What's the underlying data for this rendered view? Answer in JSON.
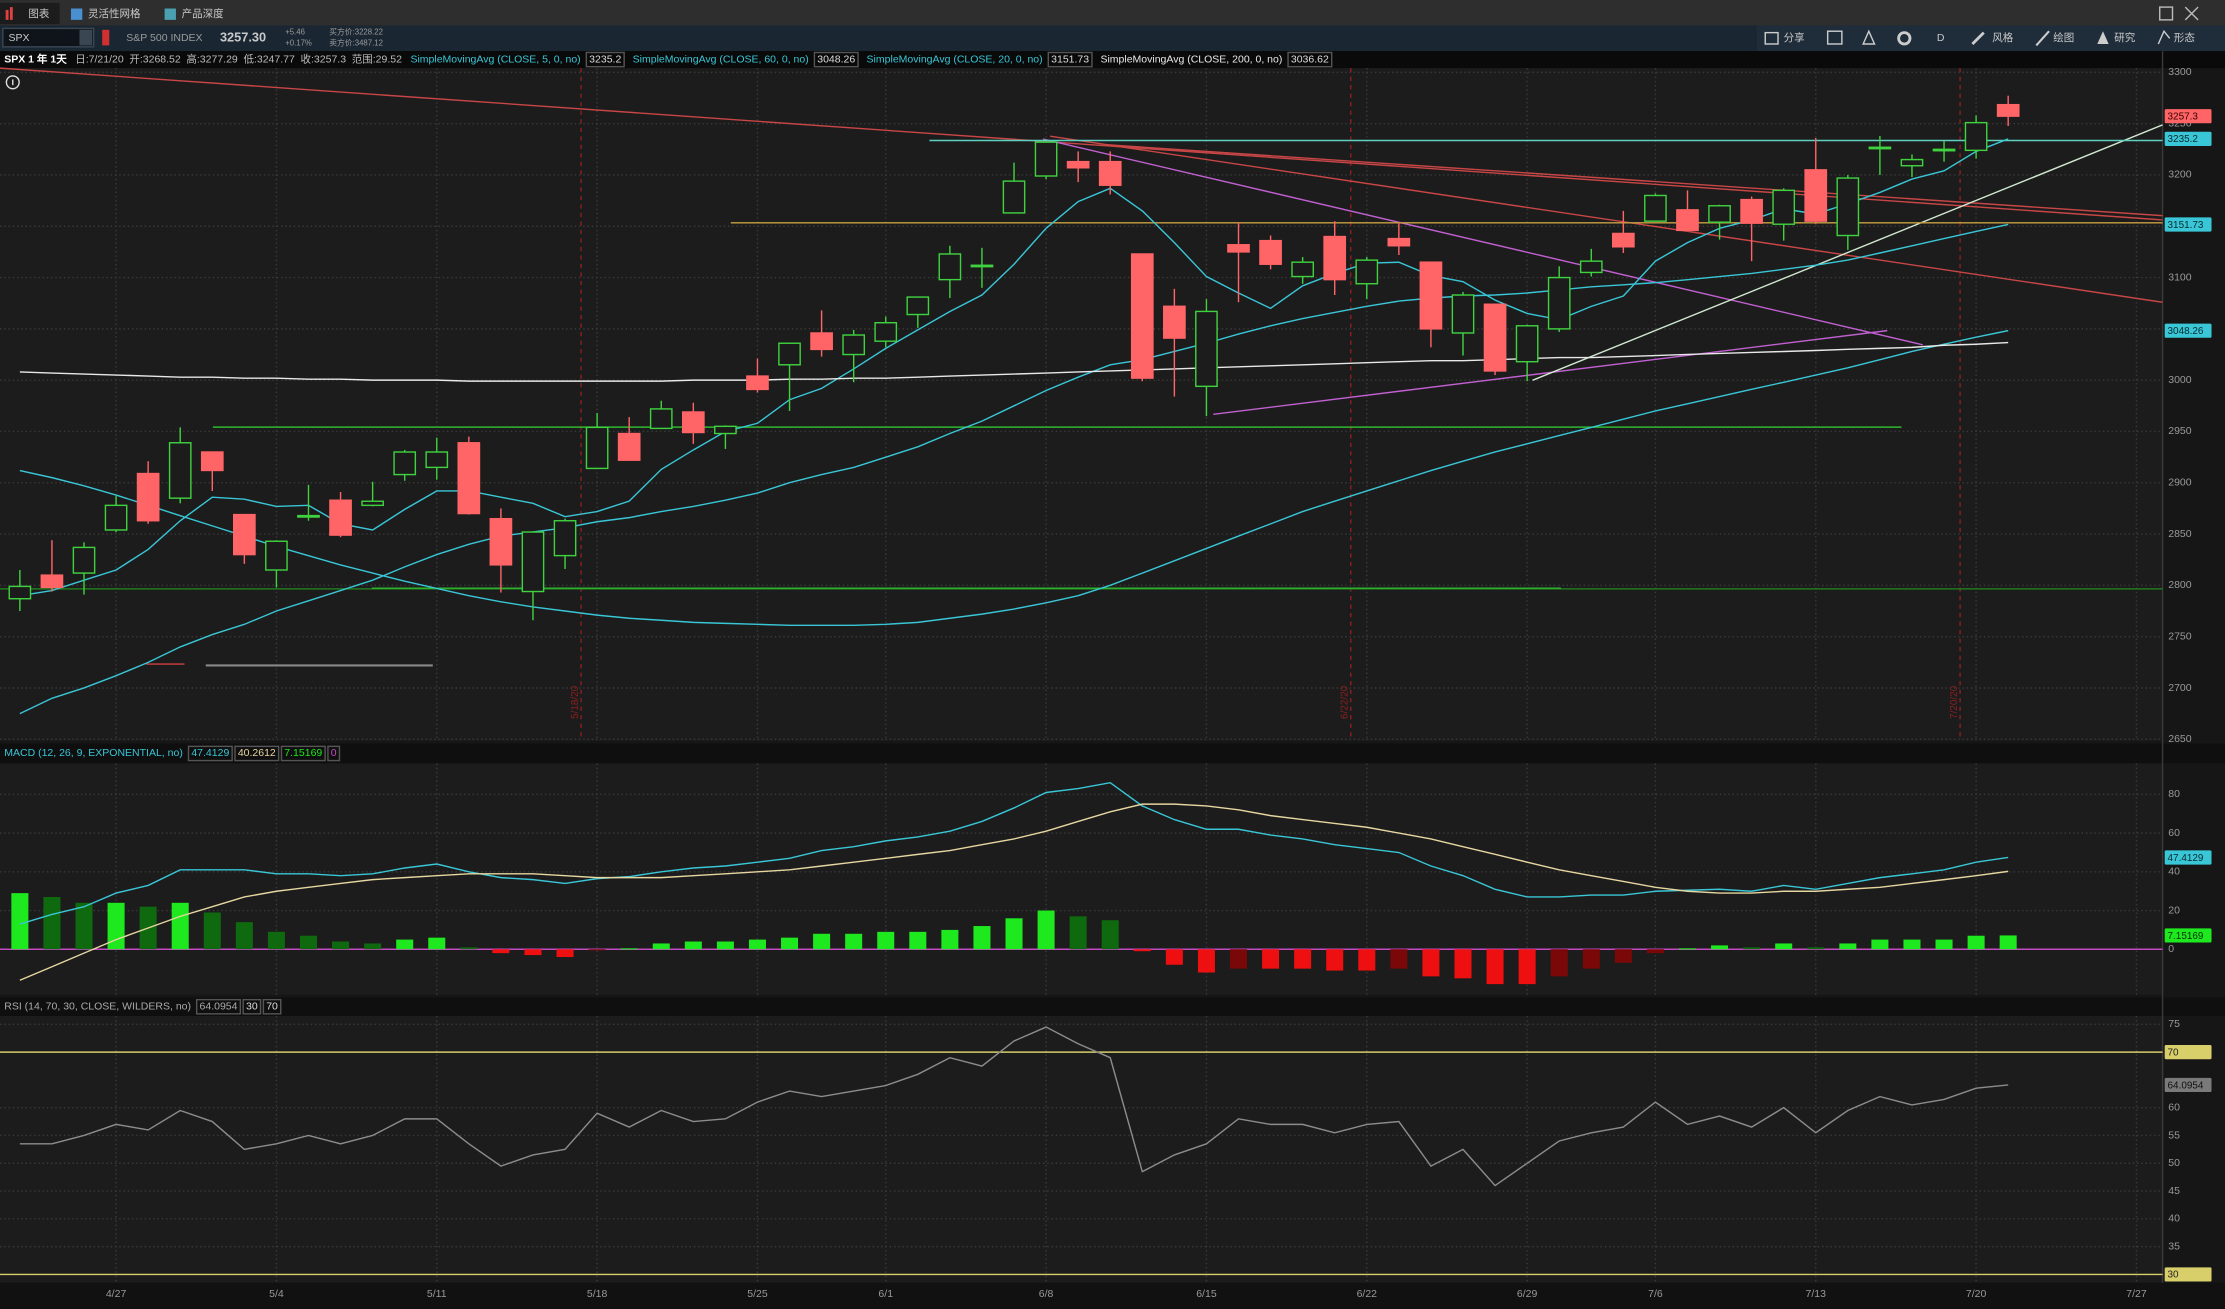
{
  "tabs": [
    "图表",
    "灵活性网格",
    "产品深度"
  ],
  "toolbar": {
    "symbol": "SPX",
    "description": "S&P 500 INDEX",
    "last": "3257.30",
    "change": "+5.46",
    "change_pct": "+0.17%",
    "bid": "买方价:3228.22",
    "ask": "卖方价:3487.12",
    "buttons": [
      "分享",
      "D",
      "风格",
      "绘图",
      "研究",
      "形态"
    ]
  },
  "chart_data": [
    {
      "type": "candlestick",
      "title": "SPX 1 年 1天",
      "info": [
        "日:7/21/20",
        "开:3268.52",
        "高:3277.29",
        "低:3247.77",
        "收:3257.3",
        "范围:29.52"
      ],
      "categories": [
        null,
        null,
        null,
        "4/27",
        null,
        null,
        null,
        null,
        "5/4",
        null,
        null,
        null,
        null,
        "5/11",
        null,
        null,
        null,
        null,
        "5/18",
        null,
        null,
        null,
        null,
        "5/25",
        null,
        null,
        null,
        "6/1",
        null,
        null,
        null,
        null,
        "6/8",
        null,
        null,
        null,
        null,
        "6/15",
        null,
        null,
        null,
        null,
        "6/22",
        null,
        null,
        null,
        null,
        "6/29",
        null,
        null,
        null,
        "7/6",
        null,
        null,
        null,
        null,
        "7/13",
        null,
        null,
        null,
        null,
        "7/20",
        null,
        null,
        null,
        null,
        "7/27"
      ],
      "open": [
        2787,
        2810,
        2812,
        2854,
        2909,
        2885,
        2930,
        2869,
        2815,
        2868,
        2883,
        2878,
        2908,
        2915,
        2939,
        2865,
        2794,
        2829,
        2914,
        2948,
        2953,
        2969,
        2948,
        3004,
        3015,
        3046,
        3025,
        3038,
        3064,
        3098,
        3112,
        3163,
        3199,
        3213,
        3213,
        3123,
        3072,
        2994,
        3132,
        3136,
        3101,
        3140,
        3094,
        3138,
        3115,
        3046,
        3074,
        3018,
        3050,
        3105,
        3143,
        3155,
        3166,
        3154,
        3176,
        3152,
        3205,
        3141,
        3226,
        3209,
        3224,
        3224,
        3268.52,
        null,
        null,
        null,
        null
      ],
      "high": [
        2815,
        2844,
        2842,
        2887,
        2921,
        2954,
        2930,
        2869,
        2844,
        2898,
        2891,
        2901,
        2932,
        2944,
        2945,
        2875,
        2852,
        2865,
        2968,
        2964,
        2980,
        2978,
        2956,
        3021,
        3036,
        3068,
        3049,
        3062,
        3081,
        3131,
        3129,
        3212,
        3233,
        3223,
        3223,
        3123,
        3089,
        3079,
        3154,
        3141,
        3120,
        3155,
        3120,
        3154,
        3115,
        3086,
        3074,
        3054,
        3111,
        3128,
        3165,
        3182,
        3185,
        3171,
        3179,
        3187,
        3236,
        3200,
        3238,
        3220,
        3233,
        3258,
        3277.29,
        null,
        null,
        null,
        null
      ],
      "low": [
        2775,
        2794,
        2791,
        2852,
        2860,
        2880,
        2892,
        2821,
        2798,
        2863,
        2847,
        2877,
        2902,
        2903,
        2869,
        2793,
        2766,
        2816,
        2914,
        2922,
        2953,
        2938,
        2933,
        2988,
        2970,
        3023,
        2998,
        3032,
        3051,
        3080,
        3090,
        3163,
        3196,
        3193,
        3181,
        2999,
        2984,
        2965,
        3076,
        3108,
        3094,
        3083,
        3079,
        3122,
        3032,
        3024,
        3005,
        2999,
        3047,
        3101,
        3124,
        3155,
        3146,
        3137,
        3116,
        3136,
        3152,
        3127,
        3200,
        3198,
        3213,
        3216,
        3247.77,
        null,
        null,
        null,
        null
      ],
      "close": [
        2799,
        2798,
        2837,
        2878,
        2863,
        2939,
        2912,
        2830,
        2843,
        2868,
        2849,
        2882,
        2930,
        2930,
        2870,
        2820,
        2852,
        2863,
        2954,
        2922,
        2972,
        2949,
        2955,
        2991,
        3036,
        3030,
        3044,
        3056,
        3081,
        3123,
        3112,
        3194,
        3232,
        3207,
        3190,
        3002,
        3041,
        3067,
        3125,
        3113,
        3115,
        3098,
        3117,
        3131,
        3050,
        3083,
        3009,
        3053,
        3100,
        3116,
        3130,
        3180,
        3146,
        3170,
        3153,
        3185,
        3155,
        3197,
        3227,
        3215,
        3225,
        3251,
        3257.3,
        null,
        null,
        null,
        null
      ],
      "up_color": "#3fd23f",
      "down_color": "#ff6466",
      "last_label": "3257.3",
      "series": [
        {
          "name": "SimpleMovingAvg (CLOSE, 5, 0, no)",
          "color": "#39c6d6",
          "last_label": "3235.2",
          "values": [
            2790,
            2795,
            2805,
            2815,
            2835,
            2863,
            2886,
            2884,
            2877,
            2878,
            2860,
            2854,
            2874,
            2892,
            2892,
            2886,
            2880,
            2867,
            2872,
            2882,
            2913,
            2932,
            2950,
            2958,
            2981,
            2992,
            3011,
            3031,
            3049,
            3067,
            3083,
            3113,
            3148,
            3174,
            3187,
            3165,
            3134,
            3101,
            3085,
            3070,
            3092,
            3104,
            3114,
            3115,
            3102,
            3096,
            3078,
            3065,
            3059,
            3072,
            3082,
            3116,
            3134,
            3148,
            3156,
            3167,
            3162,
            3172,
            3183,
            3196,
            3204,
            3223,
            3235.2,
            null,
            null,
            null,
            null
          ]
        },
        {
          "name": "SimpleMovingAvg (CLOSE, 60, 0, no)",
          "color": "#39c6d6",
          "last_label": "3048.26",
          "values": [
            2912,
            2905,
            2897,
            2888,
            2878,
            2868,
            2858,
            2848,
            2838,
            2829,
            2820,
            2812,
            2804,
            2797,
            2790,
            2784,
            2779,
            2775,
            2771,
            2768,
            2766,
            2764,
            2763,
            2762,
            2761,
            2761,
            2761,
            2762,
            2764,
            2768,
            2772,
            2777,
            2783,
            2790,
            2800,
            2812,
            2824,
            2836,
            2848,
            2860,
            2872,
            2882,
            2892,
            2902,
            2912,
            2921,
            2930,
            2938,
            2946,
            2954,
            2962,
            2970,
            2977,
            2984,
            2991,
            2998,
            3005,
            3012,
            3020,
            3028,
            3035,
            3042,
            3048.26,
            null,
            null,
            null,
            null
          ]
        },
        {
          "name": "SimpleMovingAvg (CLOSE, 20, 0, no)",
          "color": "#39c6d6",
          "last_label": "3151.73",
          "values": [
            2675,
            2690,
            2700,
            2712,
            2725,
            2740,
            2752,
            2762,
            2775,
            2785,
            2795,
            2805,
            2818,
            2830,
            2840,
            2848,
            2852,
            2856,
            2862,
            2866,
            2872,
            2877,
            2883,
            2890,
            2900,
            2908,
            2915,
            2925,
            2935,
            2948,
            2960,
            2975,
            2990,
            3003,
            3015,
            3020,
            3028,
            3036,
            3045,
            3053,
            3060,
            3066,
            3072,
            3077,
            3080,
            3082,
            3083,
            3085,
            3088,
            3091,
            3093,
            3095,
            3098,
            3101,
            3104,
            3108,
            3112,
            3117,
            3124,
            3131,
            3138,
            3145,
            3151.73,
            null,
            null,
            null,
            null
          ]
        },
        {
          "name": "SimpleMovingAvg (CLOSE, 200, 0, no)",
          "color": "#e8e8e8",
          "last_label": "3036.62",
          "values": [
            3008,
            3007,
            3006,
            3005,
            3004,
            3003,
            3003,
            3002,
            3002,
            3001,
            3001,
            3000,
            3000,
            3000,
            2999,
            2999,
            2999,
            2999,
            2999,
            2999,
            2999,
            3000,
            3000,
            3000,
            3001,
            3001,
            3002,
            3002,
            3003,
            3004,
            3005,
            3006,
            3007,
            3008,
            3009,
            3010,
            3011,
            3012,
            3013,
            3014,
            3015,
            3016,
            3017,
            3018,
            3019,
            3019,
            3020,
            3021,
            3022,
            3022,
            3023,
            3024,
            3025,
            3026,
            3027,
            3028,
            3029,
            3030,
            3031,
            3032,
            3034,
            3035,
            3036.62,
            null,
            null,
            null,
            null
          ]
        }
      ],
      "markers": [
        {
          "category": "5/18",
          "label": "5/18/20"
        },
        {
          "category": "6/22",
          "label": "6/22/20"
        },
        {
          "category": "7/20",
          "label": "7/20/20"
        }
      ],
      "ylim": [
        2650,
        3300
      ],
      "yticks": [
        2650,
        2700,
        2750,
        2800,
        2850,
        2900,
        2950,
        3000,
        3050,
        3100,
        3150,
        3200,
        3250,
        3300
      ],
      "grid": true
    },
    {
      "type": "macd",
      "title": "MACD (12, 26, 9, EXPONENTIAL, no)",
      "series": [
        {
          "color": "#39c6d6",
          "last_label": "47.4129",
          "values": [
            13,
            18,
            22,
            29,
            33,
            41,
            41,
            41,
            39,
            39,
            38,
            39,
            42,
            44,
            40,
            37,
            36,
            34,
            36.5,
            37.5,
            40,
            42,
            43,
            45,
            47,
            51,
            53,
            56,
            58,
            61,
            66,
            73,
            81,
            83,
            86,
            74,
            67,
            62,
            62,
            59,
            57,
            54,
            52,
            50,
            43,
            38,
            31,
            27,
            27,
            28,
            28,
            30,
            30.5,
            31,
            30,
            33,
            31,
            34,
            37,
            39,
            41,
            45,
            47.4129,
            null,
            null,
            null,
            null
          ]
        },
        {
          "color": "#e6d6a0",
          "last_label": "40.2612",
          "values": [
            -16,
            -9,
            -2,
            5,
            11,
            17,
            22,
            27,
            30,
            32,
            34,
            36,
            37,
            38,
            39,
            39,
            39,
            38,
            37,
            37,
            37,
            38,
            39,
            40,
            41,
            43,
            45,
            47,
            49,
            51,
            54,
            57,
            61,
            66,
            71,
            75,
            75,
            74,
            72,
            69,
            67,
            65,
            63,
            60,
            57,
            53,
            49,
            45,
            41,
            38,
            35,
            32,
            30,
            29,
            29,
            30,
            30,
            31,
            32,
            34,
            36,
            38,
            40.2612,
            null,
            null,
            null,
            null
          ]
        }
      ],
      "histogram": {
        "last_label": "7.15169",
        "values": [
          29,
          27,
          24,
          24,
          22,
          24,
          19,
          14,
          9,
          7,
          4,
          3,
          5,
          6,
          1,
          -2,
          -3,
          -4,
          -0.5,
          0.5,
          3,
          4,
          4,
          5,
          6,
          8,
          8,
          9,
          9,
          10,
          12,
          16,
          20,
          17,
          15,
          -1,
          -8,
          -12,
          -10,
          -10,
          -10,
          -11,
          -11,
          -10,
          -14,
          -15,
          -18,
          -18,
          -14,
          -10,
          -7,
          -2,
          0.5,
          2,
          1,
          3,
          1,
          3,
          5,
          5,
          5,
          7,
          7.15169,
          null,
          null,
          null,
          null
        ]
      },
      "zero": 0,
      "zero_color": "#c24bc2",
      "ylim": [
        -22,
        96
      ],
      "yticks": [
        0,
        20,
        40,
        60,
        80
      ],
      "grid": true
    },
    {
      "type": "rsi",
      "title": "RSI (14, 70, 30, CLOSE, WILDERS, no)",
      "series": [
        {
          "color": "#8c8c8c",
          "last_label": "64.0954",
          "values": [
            53.5,
            53.5,
            55,
            57,
            56,
            59.5,
            57.5,
            52.5,
            53.5,
            55,
            53.5,
            55,
            58,
            58,
            53.5,
            49.5,
            51.5,
            52.5,
            59,
            56.5,
            59.5,
            57.5,
            58,
            61,
            63,
            62,
            63,
            64,
            66,
            69,
            67.5,
            72,
            74.5,
            71.5,
            69,
            48.5,
            51.5,
            53.5,
            58,
            57,
            57,
            55.5,
            57,
            57.5,
            49.5,
            52.5,
            46,
            50,
            54,
            55.5,
            56.5,
            61,
            57,
            58.5,
            56.5,
            60,
            55.5,
            59.5,
            62,
            60.5,
            61.5,
            63.5,
            64.0954,
            null,
            null,
            null,
            null
          ]
        }
      ],
      "overbought": 70,
      "oversold": 30,
      "band_color": "#d8cf6a",
      "ylim": [
        28.5,
        76.5
      ],
      "yticks": [
        35,
        40,
        45,
        50,
        55,
        60,
        75
      ],
      "grid": true
    }
  ]
}
